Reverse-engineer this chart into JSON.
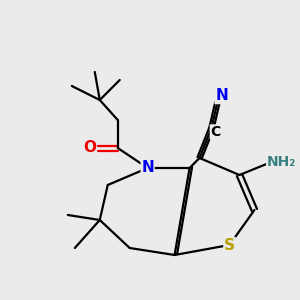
{
  "background_color": "#ebebeb",
  "fig_size": [
    3.0,
    3.0
  ],
  "dpi": 100,
  "atom_colors": {
    "C": "#000000",
    "N": "#0000ee",
    "O": "#ee0000",
    "S": "#b8a000",
    "NH2": "#3a8080"
  }
}
